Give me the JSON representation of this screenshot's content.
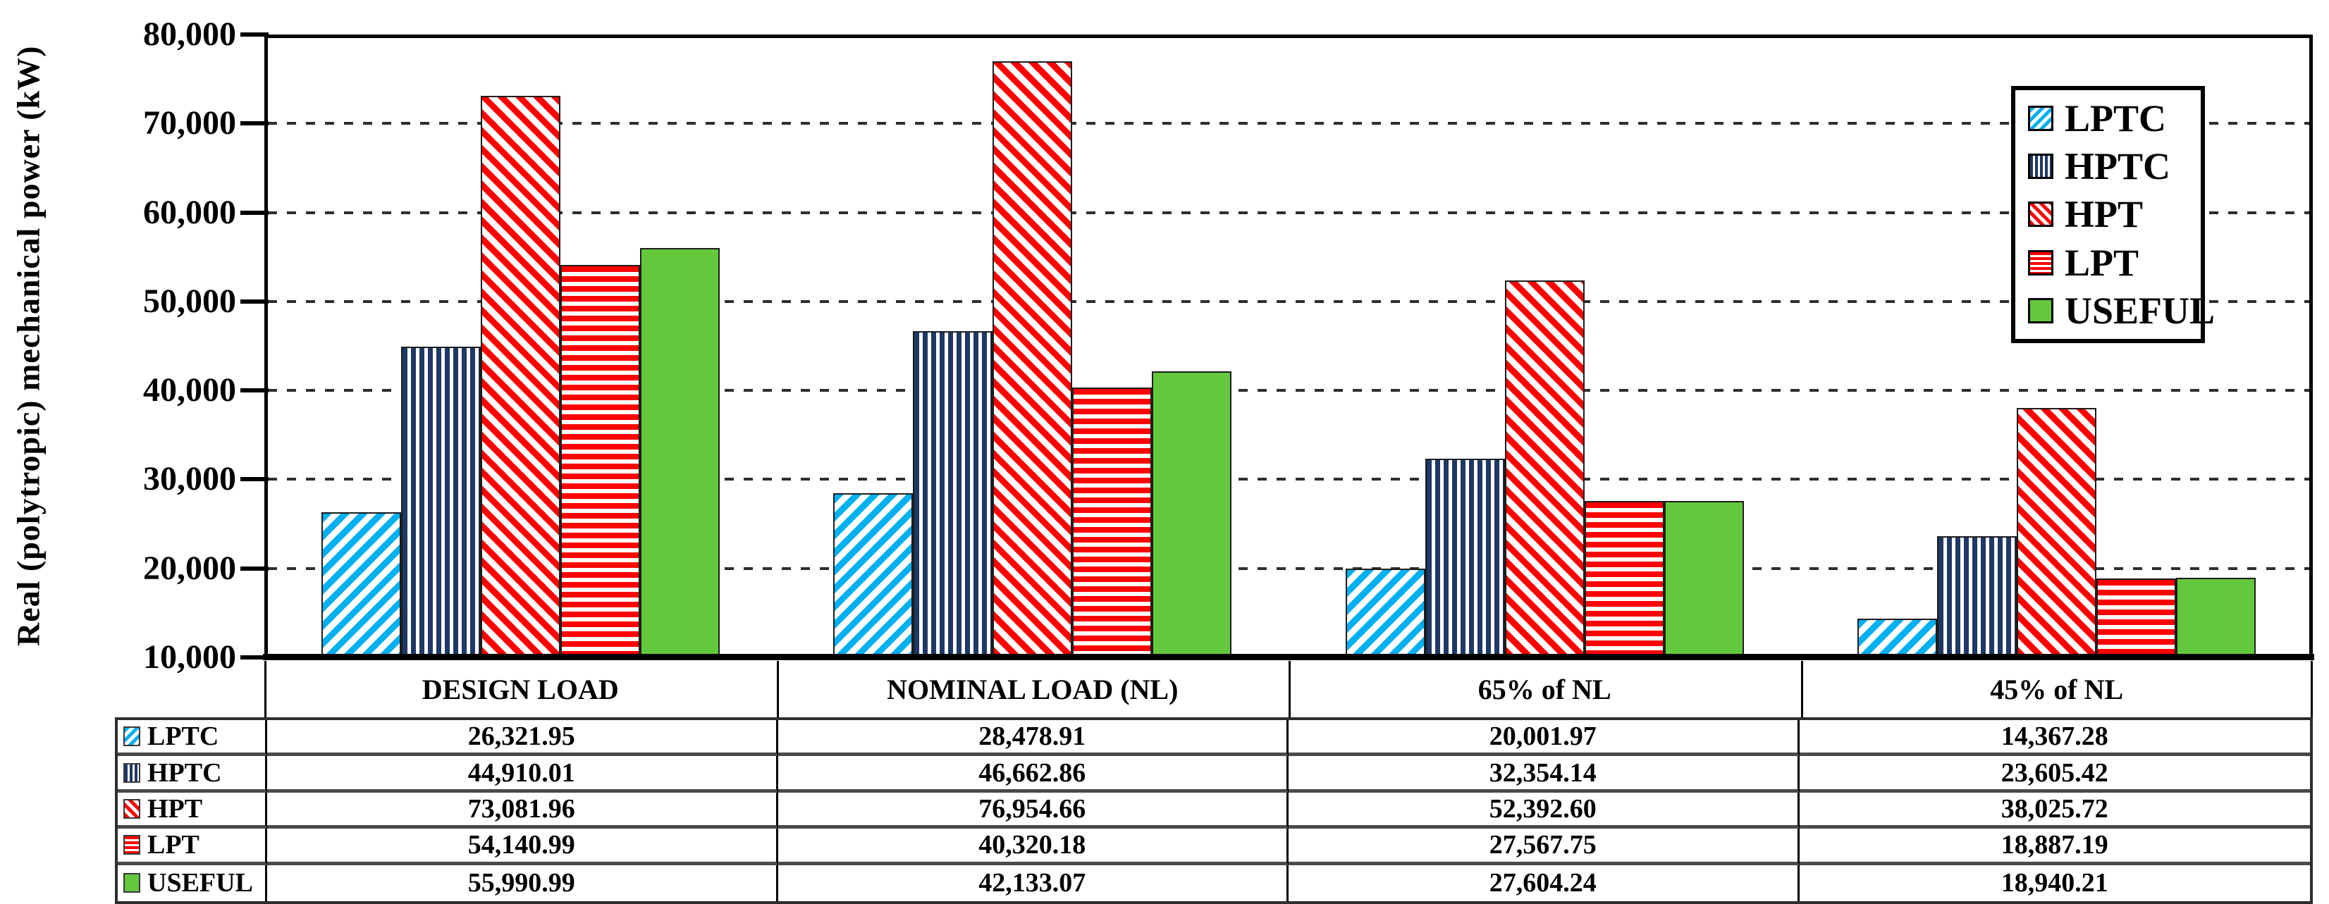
{
  "chart_data": {
    "type": "bar",
    "title": "",
    "ylabel": "Real (polytropic) mechanical power (kW)",
    "xlabel": "",
    "categories": [
      "DESIGN LOAD",
      "NOMINAL LOAD (NL)",
      "65% of NL",
      "45% of NL"
    ],
    "series": [
      {
        "name": "LPTC",
        "pattern": "diagonal-up-cyan",
        "color": "#00B0F0",
        "values": [
          26321.95,
          28478.91,
          20001.97,
          14367.28
        ],
        "value_labels": [
          "26,321.95",
          "28,478.91",
          "20,001.97",
          "14,367.28"
        ]
      },
      {
        "name": "HPTC",
        "pattern": "vertical-navy",
        "color": "#1F3864",
        "values": [
          44910.01,
          46662.86,
          32354.14,
          23605.42
        ],
        "value_labels": [
          "44,910.01",
          "46,662.86",
          "32,354.14",
          "23,605.42"
        ]
      },
      {
        "name": "HPT",
        "pattern": "diagonal-down-red",
        "color": "#FF0000",
        "values": [
          73081.96,
          76954.66,
          52392.6,
          38025.72
        ],
        "value_labels": [
          "73,081.96",
          "76,954.66",
          "52,392.60",
          "38,025.72"
        ]
      },
      {
        "name": "LPT",
        "pattern": "horizontal-red",
        "color": "#FF0000",
        "values": [
          54140.99,
          40320.18,
          27567.75,
          18887.19
        ],
        "value_labels": [
          "54,140.99",
          "40,320.18",
          "27,567.75",
          "18,887.19"
        ]
      },
      {
        "name": "USEFUL",
        "pattern": "solid-green",
        "color": "#64C83C",
        "values": [
          55990.99,
          42133.07,
          27604.24,
          18940.21
        ],
        "value_labels": [
          "55,990.99",
          "42,133.07",
          "27,604.24",
          "18,940.21"
        ]
      }
    ],
    "y_axis": {
      "min": 10000,
      "max": 80000,
      "step": 10000,
      "tick_labels": [
        "10,000",
        "20,000",
        "30,000",
        "40,000",
        "50,000",
        "60,000",
        "70,000",
        "80,000"
      ]
    },
    "legend": {
      "position": "top-right",
      "entries": [
        "LPTC",
        "HPTC",
        "HPT",
        "LPT",
        "USEFUL"
      ]
    },
    "grid": "horizontal-dashed",
    "data_table_shown": true,
    "colors": {
      "cyan": "#00B0F0",
      "navy": "#1F3864",
      "red": "#FF0000",
      "green": "#64C83C"
    }
  }
}
